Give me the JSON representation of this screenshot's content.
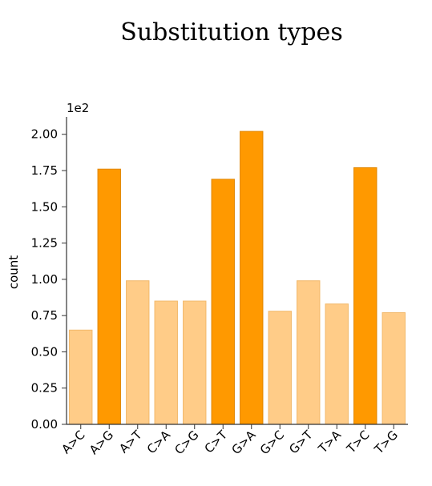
{
  "chart_data": {
    "type": "bar",
    "title": "Substitution types",
    "xlabel": "",
    "ylabel": "count",
    "y_scale_label": "1e2",
    "ylim": [
      0,
      2.12
    ],
    "yticks": [
      "0.00",
      "0.25",
      "0.50",
      "0.75",
      "1.00",
      "1.25",
      "1.50",
      "1.75",
      "2.00"
    ],
    "categories": [
      "A>C",
      "A>G",
      "A>T",
      "C>A",
      "C>G",
      "C>T",
      "G>A",
      "G>C",
      "G>T",
      "T>A",
      "T>C",
      "T>G"
    ],
    "values": [
      0.65,
      1.76,
      0.99,
      0.85,
      0.85,
      1.69,
      2.02,
      0.78,
      0.99,
      0.83,
      1.77,
      0.77
    ],
    "highlight": [
      false,
      true,
      false,
      false,
      false,
      true,
      true,
      false,
      false,
      false,
      true,
      false
    ],
    "grid": false,
    "colors": {
      "highlight_fill": "#ff9900",
      "highlight_edge": "#e08600",
      "normal_fill": "#ffcc88",
      "normal_edge": "#f2b86a",
      "axis": "#333333"
    }
  }
}
